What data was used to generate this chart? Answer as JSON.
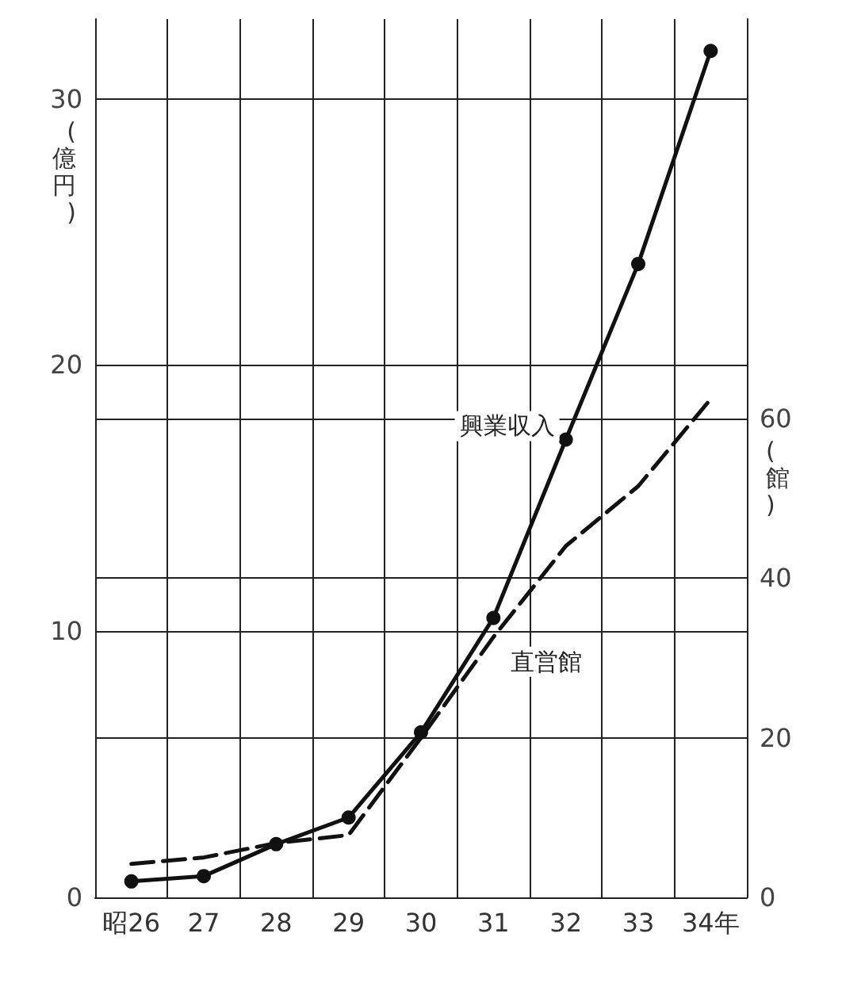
{
  "chart_data": {
    "type": "line",
    "categories": [
      "昭26",
      "27",
      "28",
      "29",
      "30",
      "31",
      "32",
      "33",
      "34年"
    ],
    "ylabel": "(億円)",
    "y2label": "(館)",
    "ylim": [
      0,
      33
    ],
    "yticks": [
      0,
      10,
      20,
      30
    ],
    "y2lim": [
      0,
      110
    ],
    "y2ticks": [
      0,
      20,
      40,
      60
    ],
    "grid": true,
    "legend": false,
    "series": [
      {
        "name": "興業収入",
        "color": "#111111",
        "marker": "circle",
        "line_style": "solid",
        "values": [
          0.6,
          0.8,
          2.0,
          3.0,
          6.2,
          10.5,
          17.2,
          23.8,
          31.8
        ]
      },
      {
        "name": "直営館",
        "color": "#111111",
        "marker": "none",
        "line_style": "dashed",
        "axis": "y2",
        "values": [
          4.2,
          5,
          6.8,
          7.8,
          20,
          32.6,
          44,
          51.5,
          62.4
        ]
      }
    ]
  }
}
